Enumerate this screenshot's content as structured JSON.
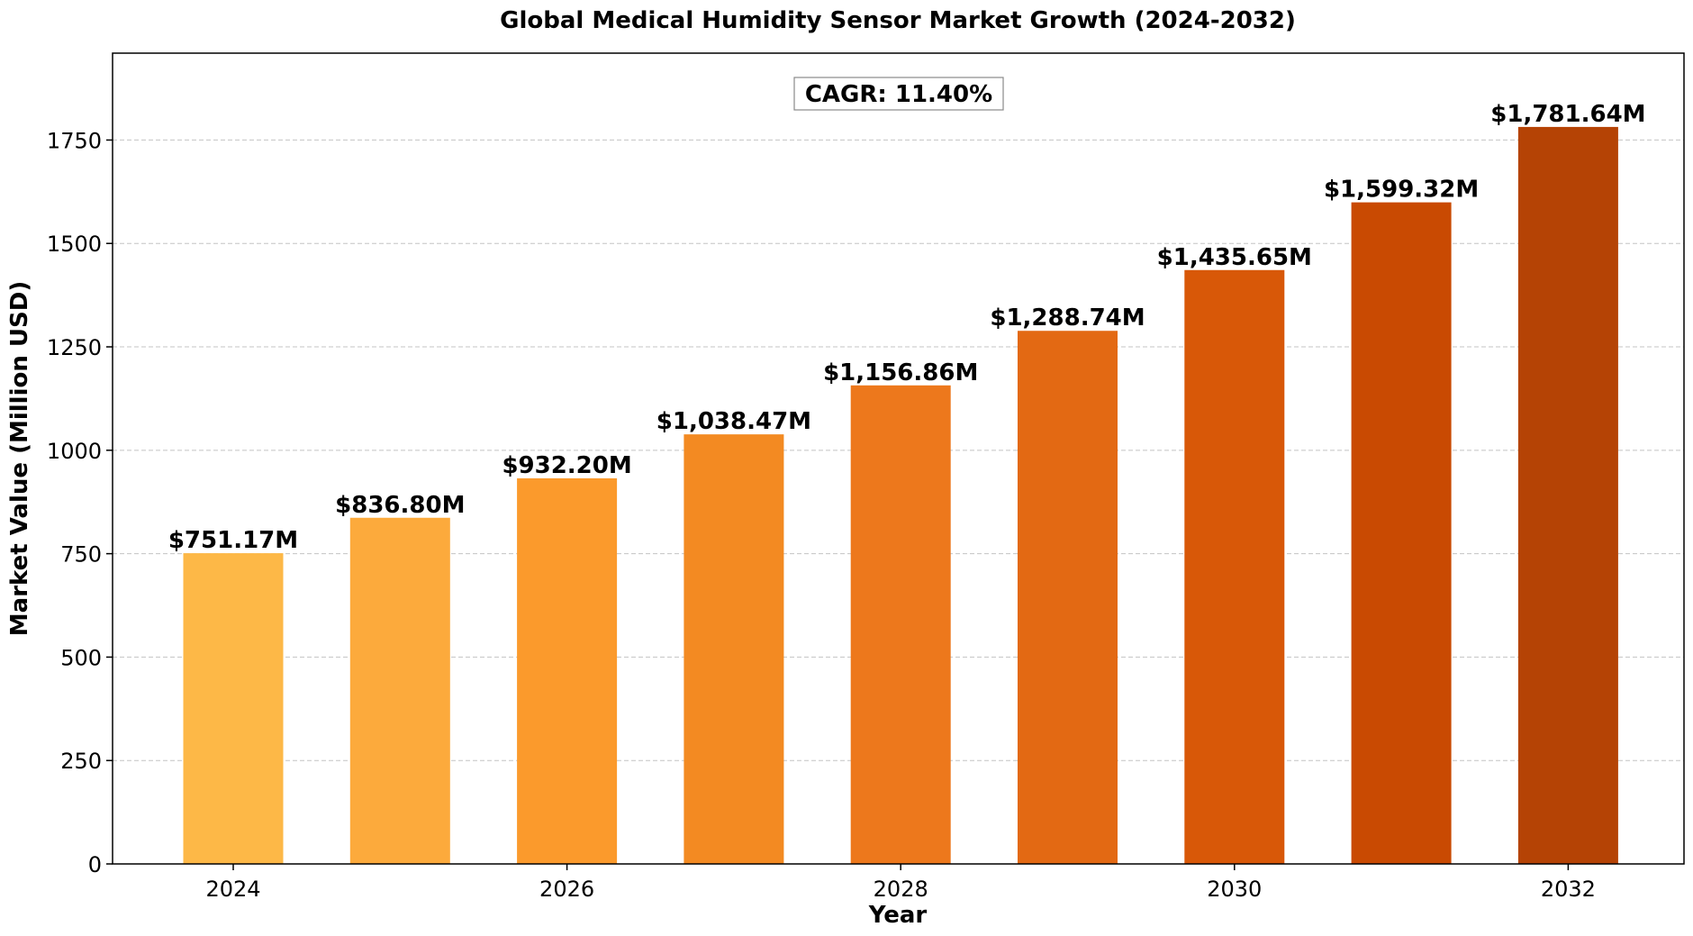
{
  "chart_data": {
    "type": "bar",
    "title": "Global Medical Humidity Sensor Market Growth (2024-2032)",
    "xlabel": "Year",
    "ylabel": "Market Value (Million USD)",
    "categories": [
      "2024",
      "2025",
      "2026",
      "2027",
      "2028",
      "2029",
      "2030",
      "2031",
      "2032"
    ],
    "values": [
      751.17,
      836.8,
      932.2,
      1038.47,
      1156.86,
      1288.74,
      1435.65,
      1599.32,
      1781.64
    ],
    "data_labels": [
      "$751.17M",
      "$836.80M",
      "$932.20M",
      "$1,038.47M",
      "$1,156.86M",
      "$1,288.74M",
      "$1,435.65M",
      "$1,599.32M",
      "$1,781.64M"
    ],
    "bar_colors": [
      "#fdb847",
      "#fcaa3c",
      "#fb9a2c",
      "#f38a22",
      "#ed781c",
      "#e36913",
      "#d85808",
      "#c94a02",
      "#b54305"
    ],
    "x_tick_labels": [
      "2024",
      "2026",
      "2028",
      "2030",
      "2032"
    ],
    "y_ticks": [
      0,
      250,
      500,
      750,
      1000,
      1250,
      1500,
      1750
    ],
    "y_tick_labels": [
      "0",
      "250",
      "500",
      "750",
      "1000",
      "1250",
      "1500",
      "1750"
    ],
    "ylim": [
      0,
      1960
    ],
    "grid": "y-dashed",
    "annotation": "CAGR: 11.40%"
  }
}
